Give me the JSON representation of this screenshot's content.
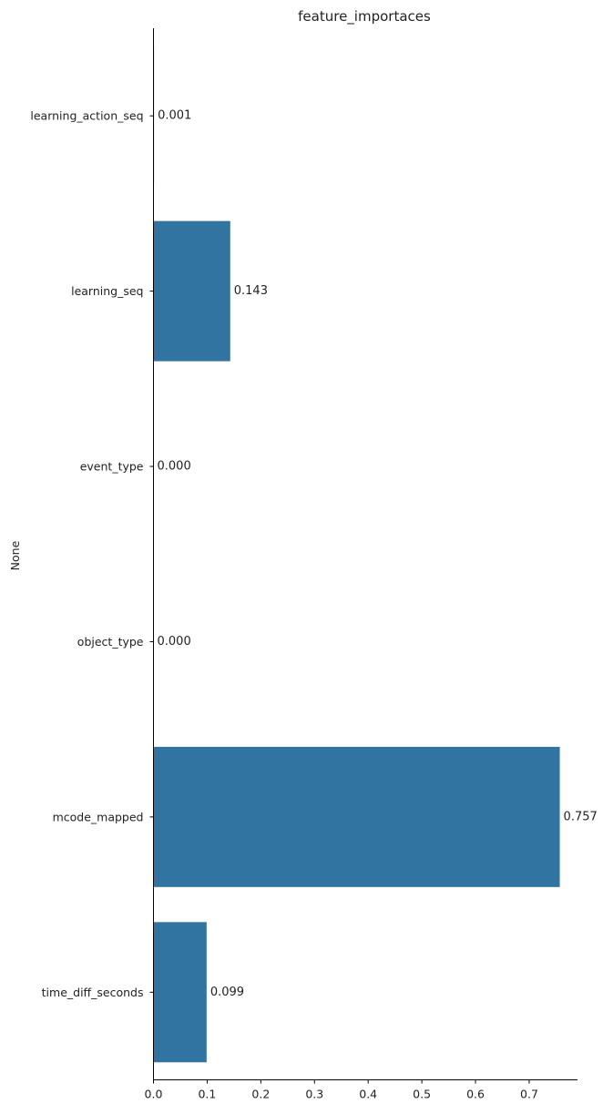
{
  "chart_data": {
    "type": "bar",
    "orientation": "horizontal",
    "title": "feature_importaces",
    "xlabel": "",
    "ylabel": "None",
    "categories": [
      "learning_action_seq",
      "learning_seq",
      "event_type",
      "object_type",
      "mcode_mapped",
      "time_diff_seconds"
    ],
    "values": [
      0.001,
      0.143,
      0.0,
      0.0,
      0.757,
      0.099
    ],
    "data_labels": [
      "0.001",
      "0.143",
      "0.000",
      "0.000",
      "0.757",
      "0.099"
    ],
    "xlim": [
      0,
      0.79
    ],
    "xticks": [
      0,
      0.1,
      0.2,
      0.3,
      0.4,
      0.5,
      0.6,
      0.7
    ],
    "xtick_labels": [
      "0.0",
      "0.1",
      "0.2",
      "0.3",
      "0.4",
      "0.5",
      "0.6",
      "0.7"
    ],
    "bar_color": "#3274a1",
    "grid": false,
    "legend": "none"
  }
}
